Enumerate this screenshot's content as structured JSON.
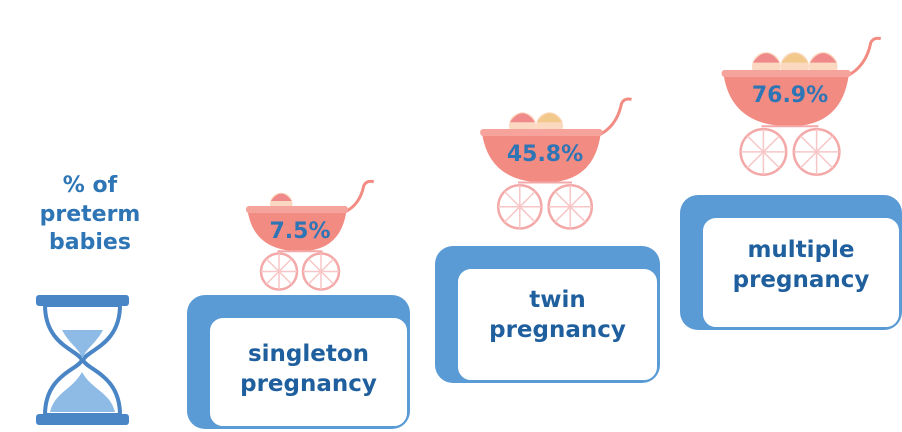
{
  "title": "% of preterm babies",
  "items": [
    {
      "label": "singleton pregnancy",
      "value": "7.5%"
    },
    {
      "label": "twin pregnancy",
      "value": "45.8%"
    },
    {
      "label": "multiple pregnancy",
      "value": "76.9%"
    }
  ]
}
